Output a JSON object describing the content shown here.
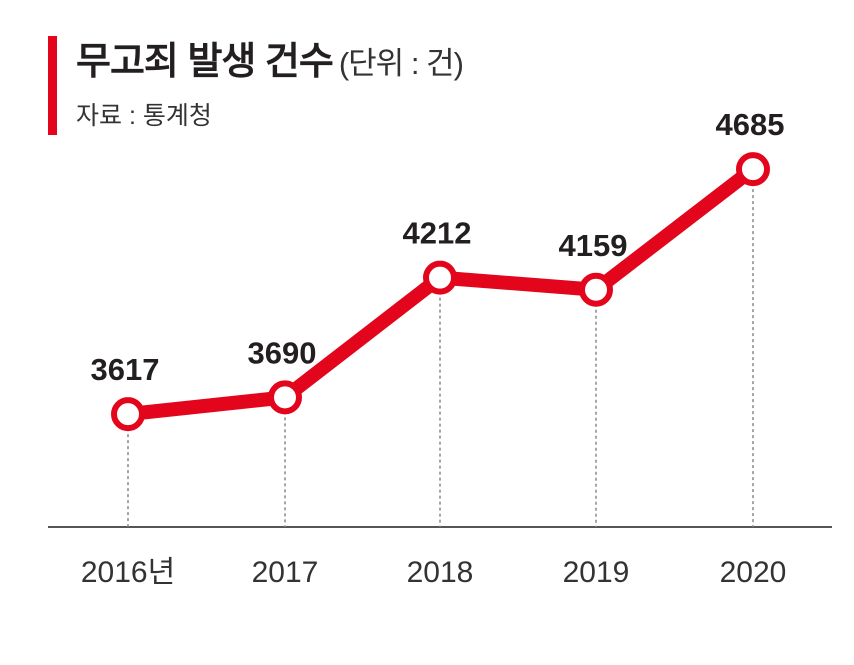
{
  "chart_data": {
    "type": "line",
    "title": "무고죄 발생 건수",
    "unit": "(단위 : 건)",
    "source": "자료 : 통계청",
    "categories": [
      "2016년",
      "2017",
      "2018",
      "2019",
      "2020"
    ],
    "values": [
      3617,
      3690,
      4212,
      4159,
      4685
    ],
    "ylim": [
      3125,
      5422
    ],
    "grid": false,
    "line_color": "#e3051b"
  }
}
